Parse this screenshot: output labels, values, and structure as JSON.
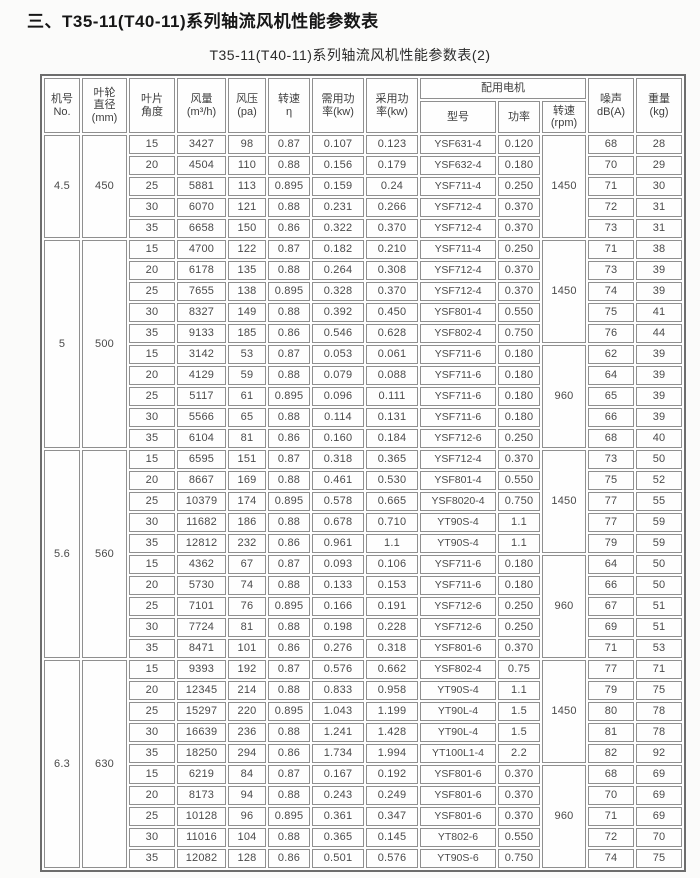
{
  "page_title": "三、T35-11(T40-11)系列轴流风机性能参数表",
  "table_title": "T35-11(T40-11)系列轴流风机性能参数表(2)",
  "headers": {
    "machine_no": "机号\nNo.",
    "impeller_diameter": "叶轮\n直径\n(mm)",
    "blade_angle": "叶片\n角度",
    "air_volume": "风量\n(m³/h)",
    "air_pressure": "风压\n(pa)",
    "eta": "转速\nη",
    "required_power": "需用功\n率(kw)",
    "adopted_power": "采用功\n率(kw)",
    "motor_group": "配用电机",
    "motor_model": "型号",
    "motor_power": "功率",
    "motor_rpm": "转速\n(rpm)",
    "noise": "噪声\ndB(A)",
    "weight": "重量\n(kg)"
  },
  "blocks": [
    {
      "machine_no": "4.5",
      "diameter": "450",
      "subblocks": [
        {
          "rpm": "1450",
          "rows": [
            {
              "angle": "15",
              "volume": "3427",
              "pressure": "98",
              "eta": "0.87",
              "required": "0.107",
              "adopted": "0.123",
              "model": "YSF631-4",
              "power": "0.120",
              "noise": "68",
              "weight": "28"
            },
            {
              "angle": "20",
              "volume": "4504",
              "pressure": "110",
              "eta": "0.88",
              "required": "0.156",
              "adopted": "0.179",
              "model": "YSF632-4",
              "power": "0.180",
              "noise": "70",
              "weight": "29"
            },
            {
              "angle": "25",
              "volume": "5881",
              "pressure": "113",
              "eta": "0.895",
              "required": "0.159",
              "adopted": "0.24",
              "model": "YSF711-4",
              "power": "0.250",
              "noise": "71",
              "weight": "30"
            },
            {
              "angle": "30",
              "volume": "6070",
              "pressure": "121",
              "eta": "0.88",
              "required": "0.231",
              "adopted": "0.266",
              "model": "YSF712-4",
              "power": "0.370",
              "noise": "72",
              "weight": "31"
            },
            {
              "angle": "35",
              "volume": "6658",
              "pressure": "150",
              "eta": "0.86",
              "required": "0.322",
              "adopted": "0.370",
              "model": "YSF712-4",
              "power": "0.370",
              "noise": "73",
              "weight": "31"
            }
          ]
        }
      ]
    },
    {
      "machine_no": "5",
      "diameter": "500",
      "subblocks": [
        {
          "rpm": "1450",
          "rows": [
            {
              "angle": "15",
              "volume": "4700",
              "pressure": "122",
              "eta": "0.87",
              "required": "0.182",
              "adopted": "0.210",
              "model": "YSF711-4",
              "power": "0.250",
              "noise": "71",
              "weight": "38"
            },
            {
              "angle": "20",
              "volume": "6178",
              "pressure": "135",
              "eta": "0.88",
              "required": "0.264",
              "adopted": "0.308",
              "model": "YSF712-4",
              "power": "0.370",
              "noise": "73",
              "weight": "39"
            },
            {
              "angle": "25",
              "volume": "7655",
              "pressure": "138",
              "eta": "0.895",
              "required": "0.328",
              "adopted": "0.370",
              "model": "YSF712-4",
              "power": "0.370",
              "noise": "74",
              "weight": "39"
            },
            {
              "angle": "30",
              "volume": "8327",
              "pressure": "149",
              "eta": "0.88",
              "required": "0.392",
              "adopted": "0.450",
              "model": "YSF801-4",
              "power": "0.550",
              "noise": "75",
              "weight": "41"
            },
            {
              "angle": "35",
              "volume": "9133",
              "pressure": "185",
              "eta": "0.86",
              "required": "0.546",
              "adopted": "0.628",
              "model": "YSF802-4",
              "power": "0.750",
              "noise": "76",
              "weight": "44"
            }
          ]
        },
        {
          "rpm": "960",
          "rows": [
            {
              "angle": "15",
              "volume": "3142",
              "pressure": "53",
              "eta": "0.87",
              "required": "0.053",
              "adopted": "0.061",
              "model": "YSF711-6",
              "power": "0.180",
              "noise": "62",
              "weight": "39"
            },
            {
              "angle": "20",
              "volume": "4129",
              "pressure": "59",
              "eta": "0.88",
              "required": "0.079",
              "adopted": "0.088",
              "model": "YSF711-6",
              "power": "0.180",
              "noise": "64",
              "weight": "39"
            },
            {
              "angle": "25",
              "volume": "5117",
              "pressure": "61",
              "eta": "0.895",
              "required": "0.096",
              "adopted": "0.111",
              "model": "YSF711-6",
              "power": "0.180",
              "noise": "65",
              "weight": "39"
            },
            {
              "angle": "30",
              "volume": "5566",
              "pressure": "65",
              "eta": "0.88",
              "required": "0.114",
              "adopted": "0.131",
              "model": "YSF711-6",
              "power": "0.180",
              "noise": "66",
              "weight": "39"
            },
            {
              "angle": "35",
              "volume": "6104",
              "pressure": "81",
              "eta": "0.86",
              "required": "0.160",
              "adopted": "0.184",
              "model": "YSF712-6",
              "power": "0.250",
              "noise": "68",
              "weight": "40"
            }
          ]
        }
      ]
    },
    {
      "machine_no": "5.6",
      "diameter": "560",
      "subblocks": [
        {
          "rpm": "1450",
          "rows": [
            {
              "angle": "15",
              "volume": "6595",
              "pressure": "151",
              "eta": "0.87",
              "required": "0.318",
              "adopted": "0.365",
              "model": "YSF712-4",
              "power": "0.370",
              "noise": "73",
              "weight": "50"
            },
            {
              "angle": "20",
              "volume": "8667",
              "pressure": "169",
              "eta": "0.88",
              "required": "0.461",
              "adopted": "0.530",
              "model": "YSF801-4",
              "power": "0.550",
              "noise": "75",
              "weight": "52"
            },
            {
              "angle": "25",
              "volume": "10379",
              "pressure": "174",
              "eta": "0.895",
              "required": "0.578",
              "adopted": "0.665",
              "model": "YSF8020-4",
              "power": "0.750",
              "noise": "77",
              "weight": "55"
            },
            {
              "angle": "30",
              "volume": "11682",
              "pressure": "186",
              "eta": "0.88",
              "required": "0.678",
              "adopted": "0.710",
              "model": "YT90S-4",
              "power": "1.1",
              "noise": "77",
              "weight": "59"
            },
            {
              "angle": "35",
              "volume": "12812",
              "pressure": "232",
              "eta": "0.86",
              "required": "0.961",
              "adopted": "1.1",
              "model": "YT90S-4",
              "power": "1.1",
              "noise": "79",
              "weight": "59"
            }
          ]
        },
        {
          "rpm": "960",
          "rows": [
            {
              "angle": "15",
              "volume": "4362",
              "pressure": "67",
              "eta": "0.87",
              "required": "0.093",
              "adopted": "0.106",
              "model": "YSF711-6",
              "power": "0.180",
              "noise": "64",
              "weight": "50"
            },
            {
              "angle": "20",
              "volume": "5730",
              "pressure": "74",
              "eta": "0.88",
              "required": "0.133",
              "adopted": "0.153",
              "model": "YSF711-6",
              "power": "0.180",
              "noise": "66",
              "weight": "50"
            },
            {
              "angle": "25",
              "volume": "7101",
              "pressure": "76",
              "eta": "0.895",
              "required": "0.166",
              "adopted": "0.191",
              "model": "YSF712-6",
              "power": "0.250",
              "noise": "67",
              "weight": "51"
            },
            {
              "angle": "30",
              "volume": "7724",
              "pressure": "81",
              "eta": "0.88",
              "required": "0.198",
              "adopted": "0.228",
              "model": "YSF712-6",
              "power": "0.250",
              "noise": "69",
              "weight": "51"
            },
            {
              "angle": "35",
              "volume": "8471",
              "pressure": "101",
              "eta": "0.86",
              "required": "0.276",
              "adopted": "0.318",
              "model": "YSF801-6",
              "power": "0.370",
              "noise": "71",
              "weight": "53"
            }
          ]
        }
      ]
    },
    {
      "machine_no": "6.3",
      "diameter": "630",
      "subblocks": [
        {
          "rpm": "1450",
          "rows": [
            {
              "angle": "15",
              "volume": "9393",
              "pressure": "192",
              "eta": "0.87",
              "required": "0.576",
              "adopted": "0.662",
              "model": "YSF802-4",
              "power": "0.75",
              "noise": "77",
              "weight": "71"
            },
            {
              "angle": "20",
              "volume": "12345",
              "pressure": "214",
              "eta": "0.88",
              "required": "0.833",
              "adopted": "0.958",
              "model": "YT90S-4",
              "power": "1.1",
              "noise": "79",
              "weight": "75"
            },
            {
              "angle": "25",
              "volume": "15297",
              "pressure": "220",
              "eta": "0.895",
              "required": "1.043",
              "adopted": "1.199",
              "model": "YT90L-4",
              "power": "1.5",
              "noise": "80",
              "weight": "78"
            },
            {
              "angle": "30",
              "volume": "16639",
              "pressure": "236",
              "eta": "0.88",
              "required": "1.241",
              "adopted": "1.428",
              "model": "YT90L-4",
              "power": "1.5",
              "noise": "81",
              "weight": "78"
            },
            {
              "angle": "35",
              "volume": "18250",
              "pressure": "294",
              "eta": "0.86",
              "required": "1.734",
              "adopted": "1.994",
              "model": "YT100L1-4",
              "power": "2.2",
              "noise": "82",
              "weight": "92"
            }
          ]
        },
        {
          "rpm": "960",
          "rows": [
            {
              "angle": "15",
              "volume": "6219",
              "pressure": "84",
              "eta": "0.87",
              "required": "0.167",
              "adopted": "0.192",
              "model": "YSF801-6",
              "power": "0.370",
              "noise": "68",
              "weight": "69"
            },
            {
              "angle": "20",
              "volume": "8173",
              "pressure": "94",
              "eta": "0.88",
              "required": "0.243",
              "adopted": "0.249",
              "model": "YSF801-6",
              "power": "0.370",
              "noise": "70",
              "weight": "69"
            },
            {
              "angle": "25",
              "volume": "10128",
              "pressure": "96",
              "eta": "0.895",
              "required": "0.361",
              "adopted": "0.347",
              "model": "YSF801-6",
              "power": "0.370",
              "noise": "71",
              "weight": "69"
            },
            {
              "angle": "30",
              "volume": "11016",
              "pressure": "104",
              "eta": "0.88",
              "required": "0.365",
              "adopted": "0.145",
              "model": "YT802-6",
              "power": "0.550",
              "noise": "72",
              "weight": "70"
            },
            {
              "angle": "35",
              "volume": "12082",
              "pressure": "128",
              "eta": "0.86",
              "required": "0.501",
              "adopted": "0.576",
              "model": "YT90S-6",
              "power": "0.750",
              "noise": "74",
              "weight": "75"
            }
          ]
        }
      ]
    }
  ],
  "colors": {
    "page_background": "#fbfbfa",
    "table_border": "#6d6d6d",
    "cell_border": "#8f8f8f",
    "text": "#4a4a4a",
    "title_text": "#161616"
  }
}
